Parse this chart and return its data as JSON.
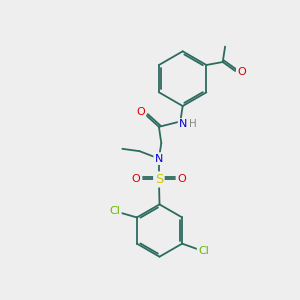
{
  "background_color": "#eeeeee",
  "bond_color": "#2d6b5e",
  "bond_width": 1.3,
  "atom_colors": {
    "O": "#dd0000",
    "N": "#0000dd",
    "S": "#cccc00",
    "Cl": "#66bb00",
    "H": "#888888"
  },
  "font_size": 7.5,
  "fig_size": [
    3.0,
    3.0
  ],
  "dpi": 100,
  "xlim": [
    0,
    10
  ],
  "ylim": [
    0,
    10
  ]
}
